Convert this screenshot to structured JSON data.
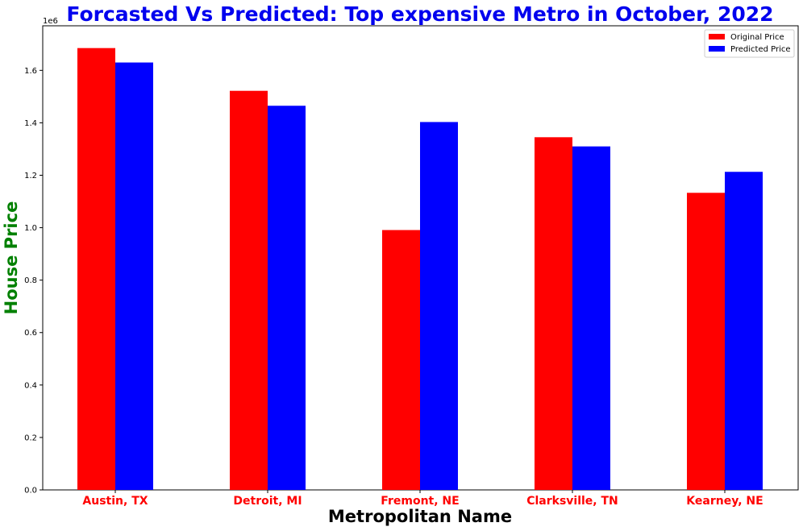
{
  "chart_data": {
    "type": "bar",
    "title": "Forcasted Vs Predicted: Top expensive Metro in October, 2022",
    "xlabel": "Metropolitan Name",
    "ylabel": "House Price",
    "offset_label": "1e6",
    "categories": [
      "Austin, TX",
      "Detroit, MI",
      "Fremont, NE",
      "Clarksville, TN",
      "Kearney, NE"
    ],
    "series": [
      {
        "name": "Original Price",
        "color": "#ff0000",
        "values": [
          1685000,
          1522000,
          991000,
          1345000,
          1133000
        ]
      },
      {
        "name": "Predicted Price",
        "color": "#0000ff",
        "values": [
          1630000,
          1465000,
          1403000,
          1310000,
          1213000
        ]
      }
    ],
    "ylim": [
      0,
      1770000
    ],
    "yticks": [
      0,
      200000,
      400000,
      600000,
      800000,
      1000000,
      1200000,
      1400000,
      1600000
    ],
    "ytick_labels": [
      "0.0",
      "0.2",
      "0.4",
      "0.6",
      "0.8",
      "1.0",
      "1.2",
      "1.4",
      "1.6"
    ],
    "grid": false,
    "legend_position": "top-right",
    "colors": {
      "title": "#0000ee",
      "ylabel": "#008000",
      "xlabel": "#000000",
      "category_labels": "#ff0000"
    }
  }
}
